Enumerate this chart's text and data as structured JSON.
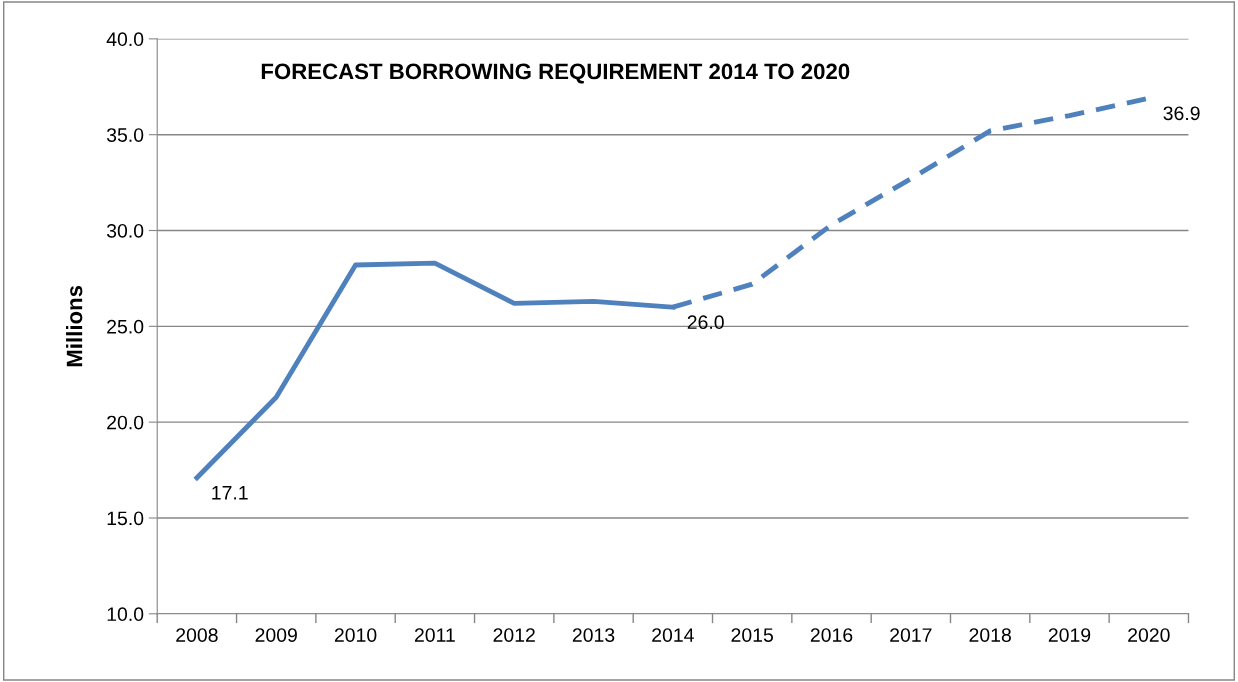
{
  "chart_data": {
    "type": "line",
    "title": "FORECAST BORROWING REQUIREMENT 2014 TO 2020",
    "ylabel": "Millions",
    "categories": [
      "2008",
      "2009",
      "2010",
      "2011",
      "2012",
      "2013",
      "2014",
      "2015",
      "2016",
      "2017",
      "2018",
      "2019",
      "2020"
    ],
    "series": [
      {
        "color": "#4f81bd",
        "line_style": "solid",
        "values": [
          17.1,
          21.3,
          28.2,
          28.3,
          26.2,
          26.3,
          26.0,
          null,
          null,
          null,
          null,
          null,
          null
        ],
        "value_labels": [
          "17.1",
          null,
          null,
          null,
          null,
          null,
          "26.0",
          null,
          null,
          null,
          null,
          null,
          null
        ]
      },
      {
        "color": "#4f81bd",
        "line_style": "dashed",
        "values": [
          null,
          null,
          null,
          null,
          null,
          null,
          26.0,
          27.2,
          30.3,
          32.7,
          35.2,
          36.0,
          36.9
        ],
        "value_labels": [
          null,
          null,
          null,
          null,
          null,
          null,
          null,
          null,
          null,
          null,
          null,
          null,
          "36.9"
        ]
      }
    ],
    "ylim": [
      10,
      40
    ],
    "yticks": [
      {
        "value": 10,
        "label": "10.0"
      },
      {
        "value": 15,
        "label": "15.0"
      },
      {
        "value": 20,
        "label": "20.0"
      },
      {
        "value": 25,
        "label": "25.0"
      },
      {
        "value": 30,
        "label": "30.0"
      },
      {
        "value": 35,
        "label": "35.0"
      },
      {
        "value": 40,
        "label": "40.0"
      }
    ],
    "grid": "y",
    "marker": "none",
    "legend": false
  }
}
